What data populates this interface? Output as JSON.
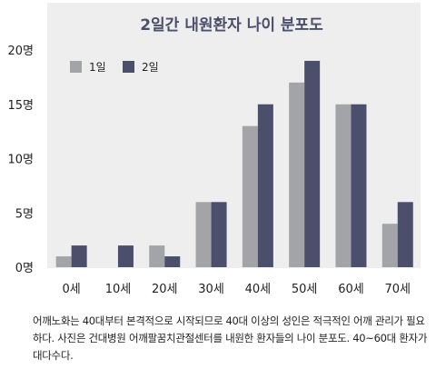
{
  "chart_data": {
    "type": "bar",
    "title": "2일간 내원환자 나이 분포도",
    "categories": [
      "0세",
      "10세",
      "20세",
      "30세",
      "40세",
      "50세",
      "60세",
      "70세"
    ],
    "series": [
      {
        "name": "1일",
        "values": [
          1,
          0,
          2,
          6,
          13,
          17,
          15,
          4
        ],
        "color": "#a2a4a7"
      },
      {
        "name": "2일",
        "values": [
          2,
          2,
          1,
          6,
          15,
          19,
          15,
          6
        ],
        "color": "#4b4f6c"
      }
    ],
    "y_ticks": [
      0,
      5,
      10,
      15,
      20
    ],
    "y_tick_labels": [
      "0명",
      "5명",
      "10명",
      "15명",
      "20명"
    ],
    "ylim": [
      0,
      20
    ],
    "grid": false,
    "legend_position": "top-left",
    "background": "#eeeeee",
    "title_color": "#4b4f6c"
  },
  "caption": "어깨노화는 40대부터 본격적으로 시작되므로 40대 이상의 성인은 적극적인 어깨 관리가 필요하다. 사진은 건대병원 어깨팔꿈치관절센터를 내원한 환자들의 나이 분포도. 40~60대 환자가 대다수다."
}
